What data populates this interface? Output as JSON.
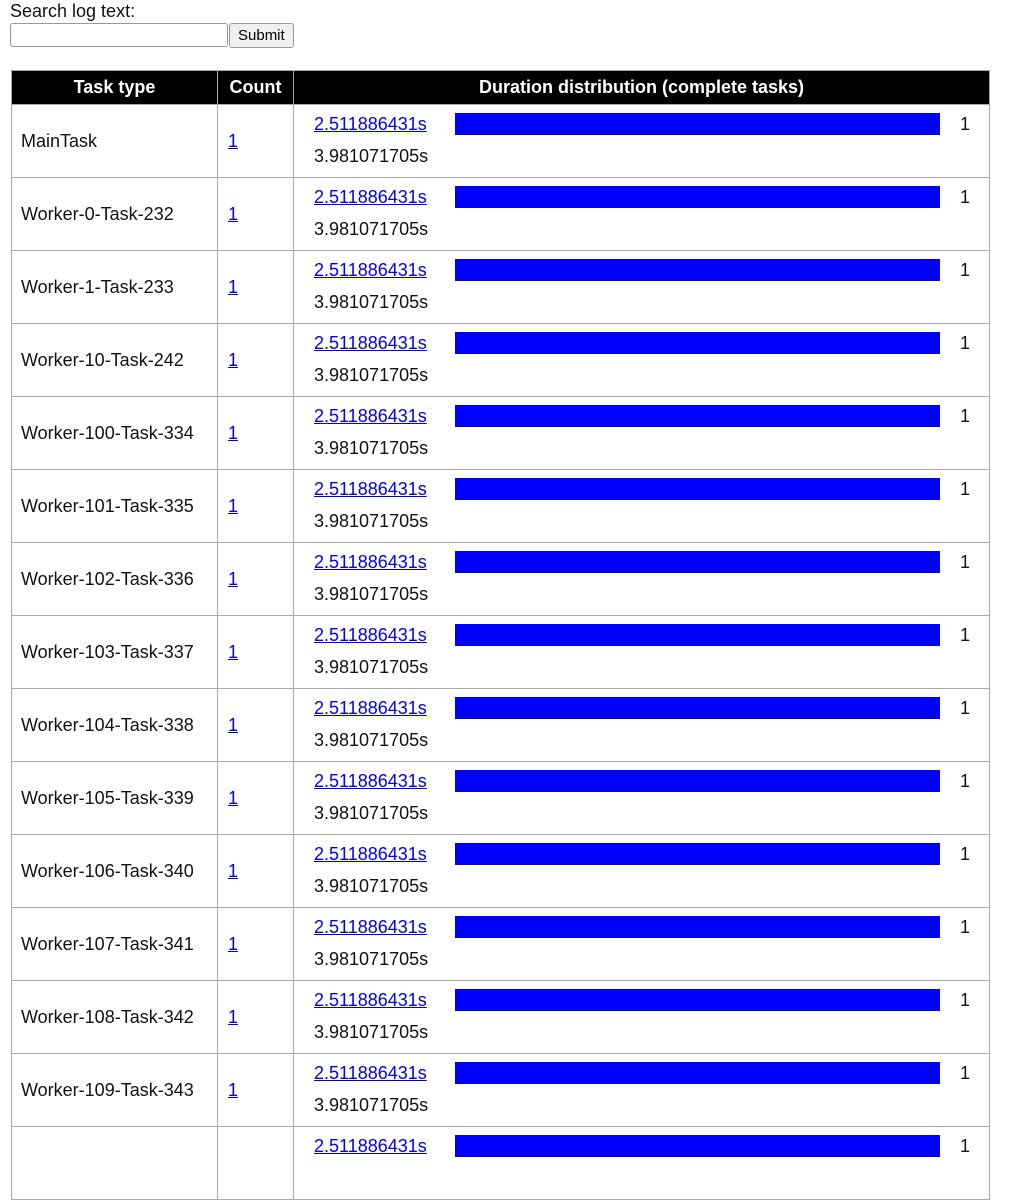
{
  "search": {
    "label": "Search log text:",
    "value": "",
    "submit_label": "Submit"
  },
  "table": {
    "headers": [
      "Task type",
      "Count",
      "Duration distribution (complete tasks)"
    ],
    "bar_color": "#0000ff",
    "rows": [
      {
        "task_type": "MainTask",
        "count": "1",
        "bins": [
          {
            "label": "2.511886431s",
            "count": "1",
            "fraction": 1
          }
        ],
        "upper": "3.981071705s"
      },
      {
        "task_type": "Worker-0-Task-232",
        "count": "1",
        "bins": [
          {
            "label": "2.511886431s",
            "count": "1",
            "fraction": 1
          }
        ],
        "upper": "3.981071705s"
      },
      {
        "task_type": "Worker-1-Task-233",
        "count": "1",
        "bins": [
          {
            "label": "2.511886431s",
            "count": "1",
            "fraction": 1
          }
        ],
        "upper": "3.981071705s"
      },
      {
        "task_type": "Worker-10-Task-242",
        "count": "1",
        "bins": [
          {
            "label": "2.511886431s",
            "count": "1",
            "fraction": 1
          }
        ],
        "upper": "3.981071705s"
      },
      {
        "task_type": "Worker-100-Task-334",
        "count": "1",
        "bins": [
          {
            "label": "2.511886431s",
            "count": "1",
            "fraction": 1
          }
        ],
        "upper": "3.981071705s"
      },
      {
        "task_type": "Worker-101-Task-335",
        "count": "1",
        "bins": [
          {
            "label": "2.511886431s",
            "count": "1",
            "fraction": 1
          }
        ],
        "upper": "3.981071705s"
      },
      {
        "task_type": "Worker-102-Task-336",
        "count": "1",
        "bins": [
          {
            "label": "2.511886431s",
            "count": "1",
            "fraction": 1
          }
        ],
        "upper": "3.981071705s"
      },
      {
        "task_type": "Worker-103-Task-337",
        "count": "1",
        "bins": [
          {
            "label": "2.511886431s",
            "count": "1",
            "fraction": 1
          }
        ],
        "upper": "3.981071705s"
      },
      {
        "task_type": "Worker-104-Task-338",
        "count": "1",
        "bins": [
          {
            "label": "2.511886431s",
            "count": "1",
            "fraction": 1
          }
        ],
        "upper": "3.981071705s"
      },
      {
        "task_type": "Worker-105-Task-339",
        "count": "1",
        "bins": [
          {
            "label": "2.511886431s",
            "count": "1",
            "fraction": 1
          }
        ],
        "upper": "3.981071705s"
      },
      {
        "task_type": "Worker-106-Task-340",
        "count": "1",
        "bins": [
          {
            "label": "2.511886431s",
            "count": "1",
            "fraction": 1
          }
        ],
        "upper": "3.981071705s"
      },
      {
        "task_type": "Worker-107-Task-341",
        "count": "1",
        "bins": [
          {
            "label": "2.511886431s",
            "count": "1",
            "fraction": 1
          }
        ],
        "upper": "3.981071705s"
      },
      {
        "task_type": "Worker-108-Task-342",
        "count": "1",
        "bins": [
          {
            "label": "2.511886431s",
            "count": "1",
            "fraction": 1
          }
        ],
        "upper": "3.981071705s"
      },
      {
        "task_type": "Worker-109-Task-343",
        "count": "1",
        "bins": [
          {
            "label": "2.511886431s",
            "count": "1",
            "fraction": 1
          }
        ],
        "upper": "3.981071705s"
      },
      {
        "task_type": "",
        "count": "",
        "bins": [
          {
            "label": "2.511886431s",
            "count": "1",
            "fraction": 1
          }
        ],
        "upper": ""
      }
    ]
  }
}
